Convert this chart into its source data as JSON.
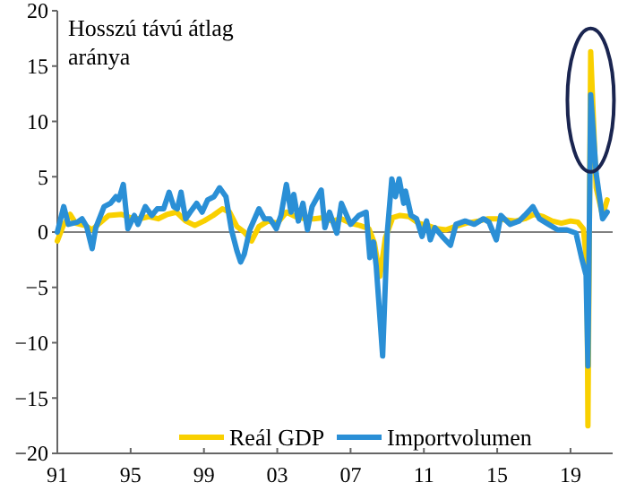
{
  "chart_data": {
    "type": "line",
    "ylabel": "Hosszú távú átlag\naránya",
    "xlim": [
      1991,
      2021.3
    ],
    "ylim": [
      -20,
      20
    ],
    "xticks": [
      {
        "value": 1991,
        "label": "91"
      },
      {
        "value": 1995,
        "label": "95"
      },
      {
        "value": 1999,
        "label": "99"
      },
      {
        "value": 2003,
        "label": "03"
      },
      {
        "value": 2007,
        "label": "07"
      },
      {
        "value": 2011,
        "label": "11"
      },
      {
        "value": 2015,
        "label": "15"
      },
      {
        "value": 2019,
        "label": "19"
      }
    ],
    "yticks": [
      -20,
      -15,
      -10,
      -5,
      0,
      5,
      10,
      15,
      20
    ],
    "ref_lines": [
      {
        "axis": "y",
        "value": 0,
        "color": "#808080"
      }
    ],
    "legend": "bottom",
    "grid": false,
    "line_style": "solid",
    "series": [
      {
        "name": "Reál GDP",
        "color": "#f9d000",
        "x": [
          1991.0,
          1991.3,
          1991.7,
          1992.0,
          1992.5,
          1992.9,
          1993.3,
          1993.8,
          1994.5,
          1995.0,
          1995.5,
          1996.0,
          1996.5,
          1997.0,
          1997.5,
          1998.0,
          1998.5,
          1999.0,
          1999.5,
          2000.0,
          2000.4,
          2000.8,
          2001.2,
          2001.6,
          2002.0,
          2002.5,
          2003.0,
          2003.5,
          2004.0,
          2004.5,
          2005.0,
          2005.5,
          2006.0,
          2006.5,
          2007.0,
          2007.5,
          2008.0,
          2008.3,
          2008.6,
          2008.9,
          2009.3,
          2009.7,
          2010.2,
          2010.7,
          2011.2,
          2011.7,
          2012.2,
          2012.7,
          2013.3,
          2014.0,
          2014.5,
          2015.0,
          2015.5,
          2016.0,
          2016.5,
          2017.0,
          2017.5,
          2018.0,
          2018.5,
          2019.0,
          2019.4,
          2019.7,
          2019.9,
          2019.95,
          2020.1,
          2020.4,
          2020.75,
          2021.0
        ],
        "values": [
          -0.8,
          0.5,
          1.6,
          0.8,
          0.6,
          0.2,
          0.8,
          1.5,
          1.6,
          1.3,
          1.2,
          1.4,
          1.2,
          1.6,
          1.8,
          1.0,
          0.6,
          1.0,
          1.5,
          2.1,
          1.8,
          0.5,
          0.0,
          -0.8,
          0.5,
          1.0,
          0.8,
          1.8,
          1.4,
          1.2,
          1.2,
          1.3,
          1.0,
          1.2,
          0.8,
          0.6,
          0.3,
          -1.0,
          -4.0,
          -0.5,
          1.3,
          1.5,
          1.4,
          0.8,
          0.6,
          0.3,
          0.2,
          0.5,
          0.8,
          1.0,
          1.2,
          1.2,
          1.1,
          1.0,
          1.2,
          1.6,
          1.4,
          1.0,
          0.8,
          1.0,
          0.9,
          0.3,
          -3.0,
          -17.5,
          16.3,
          4.0,
          1.5,
          2.9
        ]
      },
      {
        "name": "Importvolumen",
        "color": "#2a8fd6",
        "x": [
          1991.0,
          1991.35,
          1991.6,
          1992.1,
          1992.35,
          1992.6,
          1992.9,
          1993.1,
          1993.55,
          1993.9,
          1994.2,
          1994.35,
          1994.6,
          1994.85,
          1995.2,
          1995.4,
          1995.8,
          1996.15,
          1996.45,
          1996.8,
          1997.1,
          1997.35,
          1997.55,
          1997.75,
          1998.0,
          1998.25,
          1998.6,
          1998.9,
          1999.2,
          1999.55,
          1999.85,
          2000.2,
          2000.5,
          2000.8,
          2001.0,
          2001.2,
          2001.5,
          2002.0,
          2002.3,
          2002.6,
          2002.95,
          2003.2,
          2003.5,
          2003.75,
          2003.9,
          2004.15,
          2004.4,
          2004.65,
          2004.9,
          2005.4,
          2005.6,
          2005.85,
          2006.25,
          2006.5,
          2007.0,
          2007.45,
          2007.85,
          2008.05,
          2008.25,
          2008.4,
          2008.75,
          2009.0,
          2009.25,
          2009.45,
          2009.65,
          2009.9,
          2010.0,
          2010.3,
          2010.6,
          2010.9,
          2011.15,
          2011.35,
          2011.6,
          2012.0,
          2012.45,
          2012.75,
          2013.25,
          2013.75,
          2014.25,
          2014.55,
          2014.95,
          2015.2,
          2015.7,
          2016.2,
          2016.5,
          2016.95,
          2017.3,
          2017.8,
          2018.3,
          2018.8,
          2019.3,
          2019.6,
          2019.85,
          2019.95,
          2020.1,
          2020.4,
          2020.75,
          2021.0
        ],
        "values": [
          0,
          2.3,
          0.7,
          0.9,
          1.2,
          0.5,
          -1.5,
          0.4,
          2.3,
          2.6,
          3.2,
          2.9,
          4.3,
          0.3,
          1.5,
          0.7,
          2.3,
          1.5,
          2.1,
          2.1,
          3.6,
          2.3,
          2.1,
          3.6,
          1.2,
          1.8,
          2.6,
          1.8,
          2.9,
          3.2,
          4.0,
          3.2,
          0.2,
          -1.7,
          -2.7,
          -2.0,
          0.2,
          2.1,
          1.2,
          1.2,
          0.3,
          1.5,
          4.3,
          1.8,
          3.4,
          1.0,
          2.6,
          0.2,
          2.3,
          3.8,
          0.4,
          1.8,
          -0.1,
          2.6,
          0.7,
          1.5,
          1.8,
          -2.3,
          -0.9,
          -3.1,
          -11.2,
          -0.1,
          4.8,
          3.2,
          4.8,
          2.6,
          3.7,
          1.5,
          1.2,
          -0.4,
          1.0,
          -0.7,
          0.4,
          -0.4,
          -1.2,
          0.7,
          1.0,
          0.7,
          1.2,
          0.9,
          -0.7,
          1.5,
          0.7,
          1.0,
          1.5,
          2.3,
          1.2,
          0.7,
          0.2,
          0.2,
          -0.1,
          -2.3,
          -3.9,
          -12.1,
          12.4,
          5.3,
          1.2,
          1.8
        ]
      }
    ]
  }
}
